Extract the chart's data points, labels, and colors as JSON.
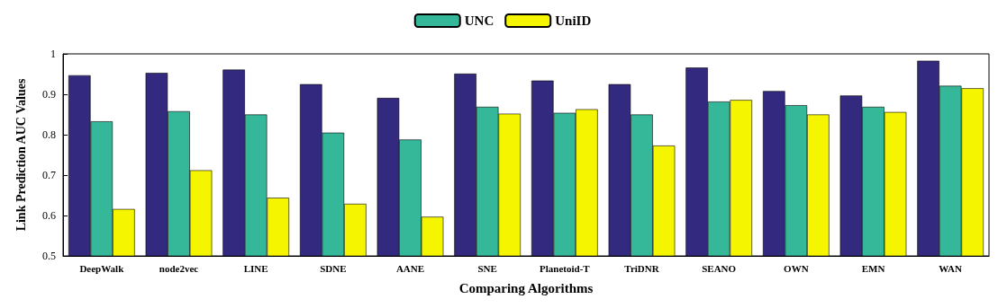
{
  "chart_data": {
    "type": "bar",
    "xlabel": "Comparing Algorithms",
    "ylabel": "Link Prediction AUC Values",
    "categories": [
      "DeepWalk",
      "node2vec",
      "LINE",
      "SDNE",
      "AANE",
      "SNE",
      "Planetoid-T",
      "TriDNR",
      "SEANO",
      "OWN",
      "EMN",
      "WAN"
    ],
    "series": [
      {
        "color": "#332a80",
        "values": [
          0.947,
          0.953,
          0.961,
          0.925,
          0.891,
          0.951,
          0.934,
          0.925,
          0.966,
          0.908,
          0.897,
          0.983
        ]
      },
      {
        "name": "UNC",
        "color": "#35b89a",
        "values": [
          0.833,
          0.858,
          0.85,
          0.805,
          0.788,
          0.869,
          0.854,
          0.85,
          0.882,
          0.873,
          0.869,
          0.921
        ]
      },
      {
        "name": "UniID",
        "color": "#f5f500",
        "values": [
          0.616,
          0.712,
          0.644,
          0.629,
          0.597,
          0.852,
          0.863,
          0.773,
          0.886,
          0.85,
          0.856,
          0.915
        ]
      }
    ],
    "ylim": [
      0.5,
      1
    ],
    "yticks": [
      0.5,
      0.6,
      0.7,
      0.8,
      0.9,
      1
    ],
    "grid": false,
    "legend": "top"
  }
}
